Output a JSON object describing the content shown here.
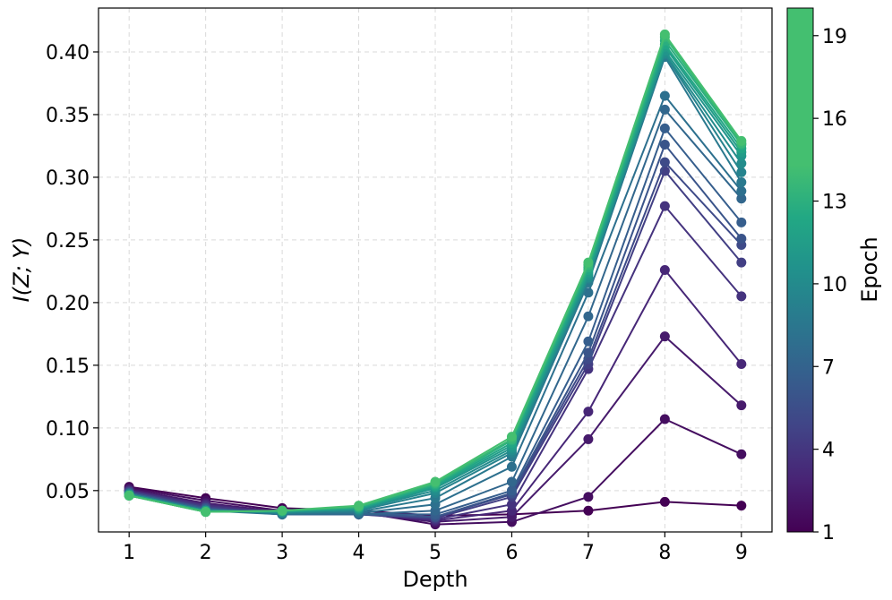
{
  "chart_data": {
    "type": "line",
    "xlabel": "Depth",
    "ylabel": "I(Z; Y)",
    "x": [
      1,
      2,
      3,
      4,
      5,
      6,
      7,
      8,
      9
    ],
    "xlim": [
      0.6,
      9.4
    ],
    "ylim": [
      0.017,
      0.435
    ],
    "yticks": [
      0.05,
      0.1,
      0.15,
      0.2,
      0.25,
      0.3,
      0.35,
      0.4
    ],
    "ytick_labels": [
      "0.05",
      "0.10",
      "0.15",
      "0.20",
      "0.25",
      "0.30",
      "0.35",
      "0.40"
    ],
    "xtick_labels": [
      "1",
      "2",
      "3",
      "4",
      "5",
      "6",
      "7",
      "8",
      "9"
    ],
    "grid": true,
    "colorbar": {
      "label": "Epoch",
      "range": [
        1,
        20
      ],
      "ticks": [
        1,
        4,
        7,
        10,
        13,
        16,
        19
      ],
      "tick_labels": [
        "1",
        "4",
        "7",
        "10",
        "13",
        "16",
        "19"
      ],
      "colormap": "viridis"
    },
    "series": [
      {
        "name": "Epoch 1",
        "epoch": 1,
        "values": [
          0.053,
          0.044,
          0.036,
          0.034,
          0.03,
          0.031,
          0.034,
          0.041,
          0.038
        ]
      },
      {
        "name": "Epoch 2",
        "epoch": 2,
        "values": [
          0.052,
          0.042,
          0.034,
          0.033,
          0.023,
          0.025,
          0.045,
          0.107,
          0.079
        ]
      },
      {
        "name": "Epoch 3",
        "epoch": 3,
        "values": [
          0.051,
          0.04,
          0.033,
          0.032,
          0.025,
          0.029,
          0.091,
          0.173,
          0.118
        ]
      },
      {
        "name": "Epoch 4",
        "epoch": 4,
        "values": [
          0.05,
          0.039,
          0.032,
          0.032,
          0.026,
          0.034,
          0.113,
          0.226,
          0.151
        ]
      },
      {
        "name": "Epoch 5",
        "epoch": 5,
        "values": [
          0.05,
          0.038,
          0.032,
          0.031,
          0.027,
          0.039,
          0.147,
          0.277,
          0.205
        ]
      },
      {
        "name": "Epoch 6",
        "epoch": 6,
        "values": [
          0.049,
          0.037,
          0.031,
          0.031,
          0.028,
          0.045,
          0.151,
          0.305,
          0.232
        ]
      },
      {
        "name": "Epoch 7",
        "epoch": 7,
        "values": [
          0.049,
          0.036,
          0.031,
          0.031,
          0.029,
          0.047,
          0.155,
          0.312,
          0.246
        ]
      },
      {
        "name": "Epoch 8",
        "epoch": 8,
        "values": [
          0.048,
          0.036,
          0.031,
          0.031,
          0.029,
          0.048,
          0.16,
          0.326,
          0.251
        ]
      },
      {
        "name": "Epoch 9",
        "epoch": 9,
        "values": [
          0.048,
          0.035,
          0.031,
          0.031,
          0.031,
          0.05,
          0.169,
          0.339,
          0.264
        ]
      },
      {
        "name": "Epoch 10",
        "epoch": 10,
        "values": [
          0.048,
          0.035,
          0.031,
          0.031,
          0.034,
          0.057,
          0.189,
          0.354,
          0.283
        ]
      },
      {
        "name": "Epoch 11",
        "epoch": 11,
        "values": [
          0.047,
          0.034,
          0.031,
          0.032,
          0.039,
          0.069,
          0.208,
          0.365,
          0.289
        ]
      },
      {
        "name": "Epoch 12",
        "epoch": 12,
        "values": [
          0.047,
          0.034,
          0.032,
          0.033,
          0.044,
          0.077,
          0.216,
          0.396,
          0.296
        ]
      },
      {
        "name": "Epoch 13",
        "epoch": 13,
        "values": [
          0.047,
          0.034,
          0.032,
          0.034,
          0.048,
          0.08,
          0.219,
          0.398,
          0.304
        ]
      },
      {
        "name": "Epoch 14",
        "epoch": 14,
        "values": [
          0.047,
          0.034,
          0.033,
          0.035,
          0.05,
          0.082,
          0.22,
          0.399,
          0.311
        ]
      },
      {
        "name": "Epoch 15",
        "epoch": 15,
        "values": [
          0.047,
          0.034,
          0.033,
          0.035,
          0.052,
          0.084,
          0.222,
          0.401,
          0.317
        ]
      },
      {
        "name": "Epoch 16",
        "epoch": 16,
        "values": [
          0.046,
          0.034,
          0.033,
          0.036,
          0.053,
          0.086,
          0.224,
          0.404,
          0.32
        ]
      },
      {
        "name": "Epoch 17",
        "epoch": 17,
        "values": [
          0.046,
          0.033,
          0.034,
          0.036,
          0.054,
          0.088,
          0.226,
          0.406,
          0.323
        ]
      },
      {
        "name": "Epoch 18",
        "epoch": 18,
        "values": [
          0.046,
          0.033,
          0.034,
          0.037,
          0.055,
          0.09,
          0.228,
          0.409,
          0.326
        ]
      },
      {
        "name": "Epoch 19",
        "epoch": 19,
        "values": [
          0.046,
          0.033,
          0.034,
          0.037,
          0.056,
          0.091,
          0.23,
          0.412,
          0.327
        ]
      },
      {
        "name": "Epoch 20",
        "epoch": 20,
        "values": [
          0.046,
          0.033,
          0.034,
          0.038,
          0.057,
          0.093,
          0.232,
          0.414,
          0.329
        ]
      }
    ]
  }
}
